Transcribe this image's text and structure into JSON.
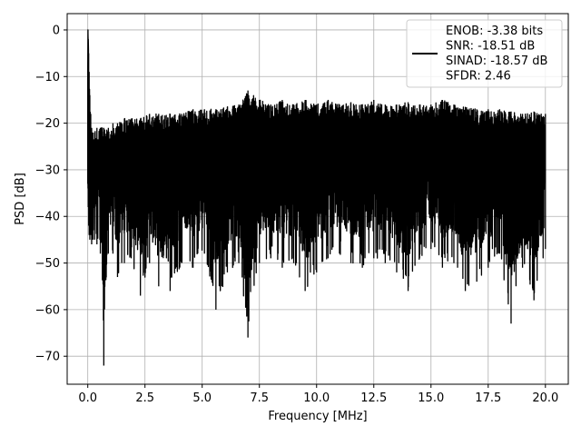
{
  "chart_data": {
    "type": "line",
    "xlabel": "Frequency [MHz]",
    "ylabel": "PSD [dB]",
    "xlim": [
      -0.9,
      21.0
    ],
    "ylim": [
      -76,
      3.5
    ],
    "x_ticks": [
      0.0,
      2.5,
      5.0,
      7.5,
      10.0,
      12.5,
      15.0,
      17.5,
      20.0
    ],
    "x_tick_labels": [
      "0.0",
      "2.5",
      "5.0",
      "7.5",
      "10.0",
      "12.5",
      "15.0",
      "17.5",
      "20.0"
    ],
    "y_ticks": [
      0,
      -10,
      -20,
      -30,
      -40,
      -50,
      -60,
      -70
    ],
    "y_tick_labels": [
      "0",
      "−10",
      "−20",
      "−30",
      "−40",
      "−50",
      "−60",
      "−70"
    ],
    "grid": true,
    "legend_position": "top-right",
    "legend": [
      "ENOB: -3.38 bits",
      "SNR: -18.51 dB",
      "SINAD: -18.57 dB",
      "SFDR: 2.46"
    ],
    "line_color": "#000000",
    "series": [
      {
        "x": [
          0.0,
          0.01,
          0.02,
          0.04,
          0.06,
          0.09,
          0.13,
          0.17,
          0.22,
          0.3,
          0.4,
          0.55,
          0.7,
          0.9,
          1.1,
          1.3,
          1.6,
          1.9,
          2.3,
          2.7,
          3.1,
          3.6,
          4.1,
          4.6,
          5.1,
          5.6,
          6.1,
          6.6,
          7.0,
          7.5,
          8.0,
          8.5,
          9.0,
          9.5,
          10.0,
          10.5,
          11.0,
          11.5,
          12.0,
          12.5,
          13.0,
          13.5,
          14.0,
          14.5,
          15.0,
          15.5,
          16.0,
          16.5,
          17.0,
          17.5,
          18.0,
          18.5,
          19.0,
          19.5,
          20.0
        ],
        "y_upper": [
          -8,
          0,
          -2,
          -5,
          -9,
          -14,
          -18,
          -21,
          -22,
          -22,
          -21,
          -21,
          -21,
          -21,
          -20,
          -20,
          -19,
          -19,
          -19,
          -18,
          -18,
          -18,
          -18,
          -17,
          -17,
          -17,
          -16.5,
          -16,
          -13,
          -15,
          -16,
          -15,
          -16,
          -15,
          -16,
          -15,
          -16,
          -15.5,
          -16,
          -15,
          -16,
          -16,
          -15.5,
          -16,
          -16,
          -15,
          -16,
          -16.5,
          -17,
          -17,
          -17,
          -17.5,
          -18,
          -17.5,
          -18
        ],
        "y_lower": [
          -33,
          -34,
          -38,
          -42,
          -44,
          -45,
          -44,
          -46,
          -45,
          -45,
          -46,
          -48,
          -72,
          -48,
          -48,
          -53,
          -50,
          -49,
          -57,
          -50,
          -55,
          -56,
          -50,
          -51,
          -48,
          -60,
          -52,
          -50,
          -66,
          -50,
          -49,
          -51,
          -50,
          -56,
          -52,
          -49,
          -48,
          -50,
          -51,
          -49,
          -50,
          -52,
          -56,
          -49,
          -47,
          -51,
          -50,
          -56,
          -54,
          -51,
          -48,
          -63,
          -51,
          -58,
          -47
        ]
      }
    ]
  }
}
